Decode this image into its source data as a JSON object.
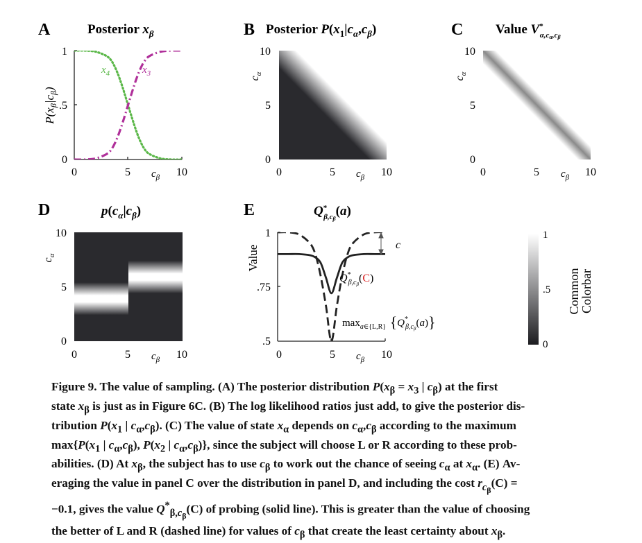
{
  "panels": {
    "A": {
      "letter": "A",
      "title": "Posterior xβ",
      "ylabel": "P(xβ|cβ)",
      "xlabel": "cβ",
      "series_labels": [
        "x4",
        "x3"
      ],
      "yticks": [
        "1",
        ".5",
        "0"
      ],
      "xticks": [
        "0",
        "5",
        "10"
      ]
    },
    "B": {
      "letter": "B",
      "title": "Posterior P(x1|cα,cβ)",
      "ylabel": "cα",
      "xlabel": "cβ",
      "yticks": [
        "10",
        "5",
        "0"
      ],
      "xticks": [
        "0",
        "5",
        "10"
      ]
    },
    "C": {
      "letter": "C",
      "title": "Value V*α,cα,cβ",
      "ylabel": "cα",
      "xlabel": "cβ",
      "yticks": [
        "10",
        "5",
        "0"
      ],
      "xticks": [
        "0",
        "5",
        "10"
      ]
    },
    "D": {
      "letter": "D",
      "title": "p(cα|cβ)",
      "ylabel": "cα",
      "xlabel": "cβ",
      "yticks": [
        "10",
        "5",
        "0"
      ],
      "xticks": [
        "0",
        "5",
        "10"
      ]
    },
    "E": {
      "letter": "E",
      "title": "Q*β,cβ(a)",
      "ylabel": "Value",
      "xlabel": "cβ",
      "yticks": [
        "1",
        ".75",
        ".5"
      ],
      "xticks": [
        "0",
        "5",
        "10"
      ],
      "cost_label": "c",
      "annotation_solid": "Q*β,cβ(C)",
      "annotation_dashed": "max a∈{L,R} {Q*β,cβ(a)}"
    },
    "colorbar": {
      "title_line1": "Common",
      "title_line2": "Colorbar",
      "ticks": [
        "1",
        ".5",
        "0"
      ]
    }
  },
  "chart_data": [
    {
      "panel": "A",
      "type": "line",
      "title": "Posterior xβ",
      "xlabel": "cβ",
      "ylabel": "P(xβ|cβ)",
      "xlim": [
        0,
        10
      ],
      "ylim": [
        0,
        1
      ],
      "x": [
        0,
        1,
        2,
        3,
        3.5,
        4,
        4.5,
        5,
        5.5,
        6,
        6.5,
        7,
        8,
        9,
        10
      ],
      "series": [
        {
          "name": "x4",
          "style": "dotted",
          "color": "#5cb84a",
          "values": [
            1.0,
            1.0,
            0.99,
            0.95,
            0.9,
            0.8,
            0.66,
            0.5,
            0.34,
            0.2,
            0.1,
            0.05,
            0.01,
            0.0,
            0.0
          ]
        },
        {
          "name": "x3",
          "style": "dash-dot",
          "color": "#b0309a",
          "values": [
            0.0,
            0.0,
            0.01,
            0.05,
            0.1,
            0.2,
            0.34,
            0.5,
            0.66,
            0.8,
            0.9,
            0.95,
            0.99,
            1.0,
            1.0
          ]
        }
      ]
    },
    {
      "panel": "B",
      "type": "heatmap",
      "title": "Posterior P(x1|cα,cβ)",
      "xlabel": "cβ",
      "ylabel": "cα",
      "xlim": [
        0,
        10
      ],
      "ylim": [
        0,
        10
      ],
      "description_values": {
        "lower_left_triangle": 0.0,
        "upper_right_triangle": 1.0
      }
    },
    {
      "panel": "C",
      "type": "heatmap",
      "title": "Value V*α,cα,cβ",
      "xlabel": "cβ",
      "ylabel": "cα",
      "xlim": [
        0,
        10
      ],
      "ylim": [
        0,
        10
      ],
      "description_values": {
        "off_diagonal": 1.0,
        "diagonal_minimum": 0.5
      }
    },
    {
      "panel": "D",
      "type": "heatmap",
      "title": "p(cα|cβ)",
      "xlabel": "cβ",
      "ylabel": "cα",
      "xlim": [
        0,
        10
      ],
      "ylim": [
        0,
        10
      ],
      "bands": [
        {
          "c_beta_range": [
            0,
            5
          ],
          "c_alpha_center": 4.0
        },
        {
          "c_beta_range": [
            5,
            10
          ],
          "c_alpha_center": 6.0
        }
      ]
    },
    {
      "panel": "E",
      "type": "line",
      "title": "Q*β,cβ(a)",
      "xlabel": "cβ",
      "ylabel": "Value",
      "xlim": [
        0,
        10
      ],
      "ylim": [
        0.5,
        1
      ],
      "x": [
        0,
        1,
        2,
        3,
        3.5,
        4,
        4.5,
        5,
        5.5,
        6,
        6.5,
        7,
        8,
        9,
        10
      ],
      "series": [
        {
          "name": "Q*β,cβ(C)",
          "style": "solid",
          "color": "#222222",
          "values": [
            0.9,
            0.9,
            0.9,
            0.895,
            0.885,
            0.86,
            0.79,
            0.72,
            0.79,
            0.86,
            0.885,
            0.895,
            0.9,
            0.9,
            0.9
          ]
        },
        {
          "name": "max a∈{L,R} {Q*β,cβ(a)}",
          "style": "dashed",
          "color": "#222222",
          "values": [
            1.0,
            1.0,
            0.99,
            0.95,
            0.9,
            0.8,
            0.66,
            0.5,
            0.66,
            0.8,
            0.9,
            0.95,
            0.99,
            1.0,
            1.0
          ]
        }
      ]
    }
  ],
  "caption": {
    "lines": [
      "Figure 9. The value of sampling. (A) The posterior distribution P(xβ = x3 | cβ) at the first",
      "state xβ is just as in Figure 6C. (B) The log likelihood ratios just add, to give the posterior dis-",
      "tribution P(x1 | cα,cβ). (C) The value of state xα depends on cα,cβ according to the maximum",
      "max{P(x1 | cα,cβ), P(x2 | cα,cβ)}, since the subject will choose L or R according to these prob-",
      "abilities. (D) At xβ, the subject has to use cβ to work out the chance of seeing cα at xα. (E) Av-",
      "eraging the value in panel C over the distribution in panel D, and including the cost rcβ(C) =",
      "−0.1, gives the value Q*β,cβ(C) of probing (solid line). This is greater than the value of choosing",
      "the better of L and R (dashed line) for values of cβ that create the least certainty about xβ."
    ]
  }
}
